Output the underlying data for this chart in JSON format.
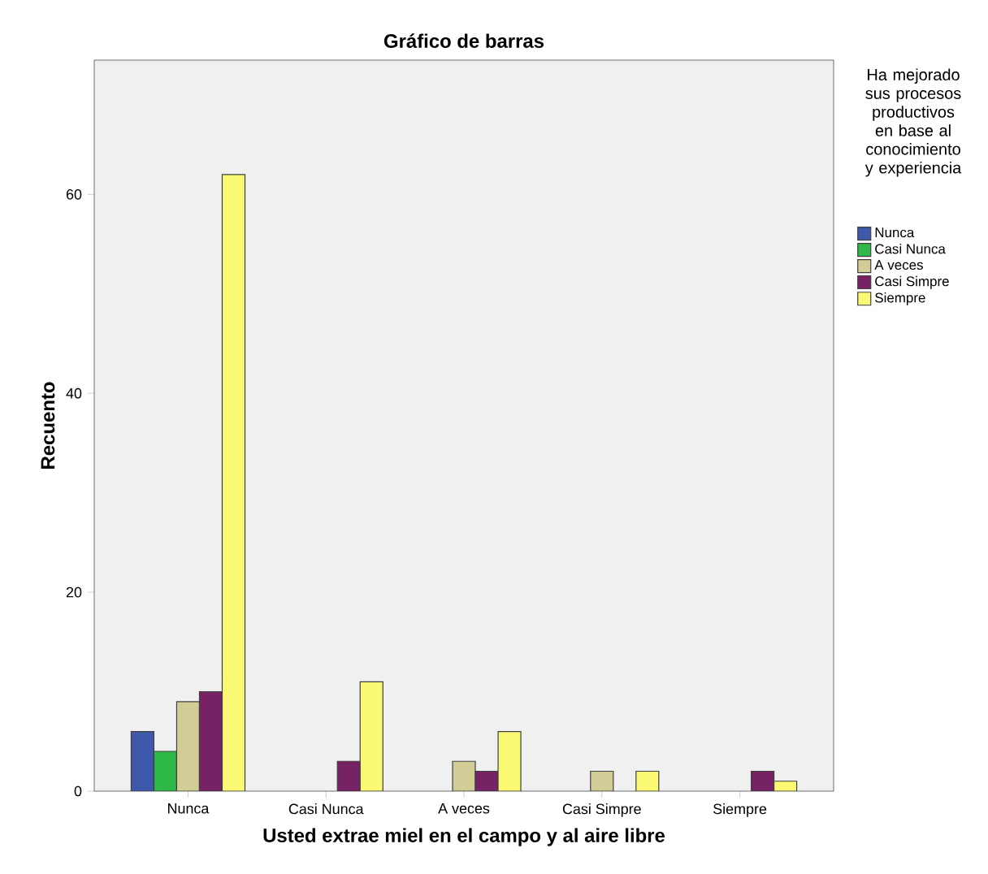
{
  "chart_data": {
    "type": "bar",
    "title": "Gráfico de barras",
    "xlabel": "Usted extrae miel en el campo y al aire libre",
    "ylabel": "Recuento",
    "legend_title": "Ha mejorado sus procesos productivos en base al conocimiento y experiencia",
    "categories": [
      "Nunca",
      "Casi Nunca",
      "A veces",
      "Casi Simpre",
      "Siempre"
    ],
    "series": [
      {
        "name": "Nunca",
        "color": "#3e58ac",
        "values": [
          6,
          null,
          null,
          null,
          null
        ]
      },
      {
        "name": "Casi Nunca",
        "color": "#2eb848",
        "values": [
          4,
          null,
          null,
          null,
          null
        ]
      },
      {
        "name": "A veces",
        "color": "#d2cc97",
        "values": [
          9,
          null,
          3,
          2,
          null
        ]
      },
      {
        "name": "Casi Simpre",
        "color": "#762264",
        "values": [
          10,
          3,
          2,
          null,
          2
        ]
      },
      {
        "name": "Siempre",
        "color": "#fbf873",
        "values": [
          62,
          11,
          6,
          2,
          1
        ]
      }
    ],
    "ylim": [
      0,
      73.5
    ],
    "yticks": [
      0,
      20,
      40,
      60
    ],
    "legend": "right"
  }
}
